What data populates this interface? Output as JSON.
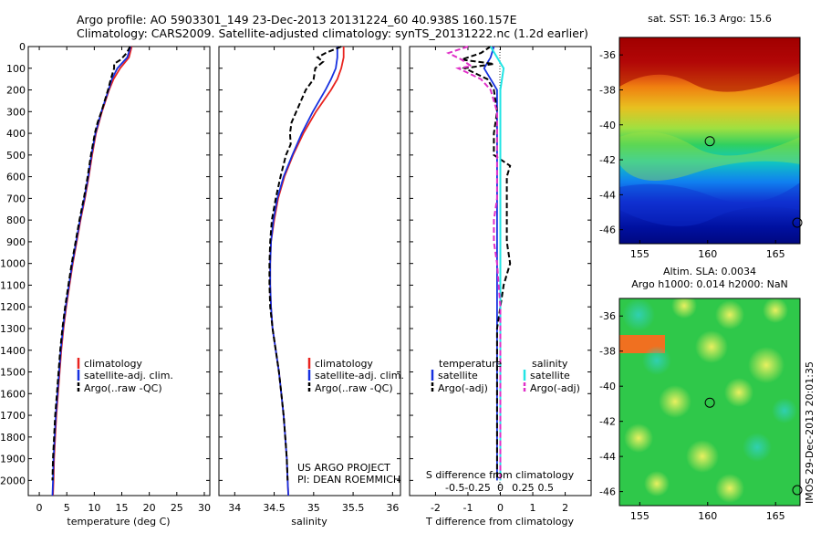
{
  "header": {
    "line1": "Argo profile: AO 5903301_149 23-Dec-2013 20131224_60 40.938S 160.157E",
    "line2": "Climatology: CARS2009. Satellite-adjusted climatology: synTS_20131222.nc (1.2d earlier)"
  },
  "colors": {
    "climatology": "#e8231f",
    "satellite": "#1630e0",
    "argo": "#000000",
    "satellite_salinity": "#22e5e5",
    "argo_salinity": "#e030c8"
  },
  "legend_profile": {
    "climatology": "climatology",
    "satellite": "satellite-adj. clim.",
    "argo": "Argo(..raw -QC)"
  },
  "legend_diff": {
    "temperature_head": "temperature",
    "salinity_head": "salinity",
    "t_satellite": "satellite",
    "t_argo": "Argo(-adj)",
    "s_satellite": "satellite",
    "s_argo": "Argo(-adj)"
  },
  "credit": {
    "line1": "US ARGO PROJECT",
    "line2": "PI: DEAN ROEMMICH"
  },
  "side_label": "IMOS 29-Dec-2013 20:01:35",
  "map_sst": {
    "title": "sat. SST: 16.3 Argo: 15.6",
    "y_ticks": [
      "-36",
      "-38",
      "-40",
      "-42",
      "-44",
      "-46"
    ],
    "x_ticks": [
      "155",
      "160",
      "165"
    ],
    "marker": {
      "lon": 160.157,
      "lat": -40.938
    }
  },
  "map_sla": {
    "title1": "Altim. SLA: 0.0034",
    "title2": "Argo h1000: 0.014 h2000: NaN",
    "y_ticks": [
      "-36",
      "-38",
      "-40",
      "-42",
      "-44",
      "-46"
    ],
    "x_ticks": [
      "155",
      "160",
      "165"
    ],
    "marker": {
      "lon": 160.157,
      "lat": -40.938
    }
  },
  "chart_data": [
    {
      "type": "line",
      "xlabel": "temperature (deg C)",
      "ylabel": "",
      "xlim": [
        -2,
        31
      ],
      "ylim": [
        2070,
        0
      ],
      "x_ticks": [
        0,
        5,
        10,
        15,
        20,
        25,
        30
      ],
      "y_ticks": [
        0,
        100,
        200,
        300,
        400,
        500,
        600,
        700,
        800,
        900,
        1000,
        1100,
        1200,
        1300,
        1400,
        1500,
        1600,
        1700,
        1800,
        1900,
        2000
      ],
      "series": [
        {
          "name": "climatology",
          "depth": [
            0,
            50,
            100,
            150,
            200,
            300,
            400,
            500,
            600,
            700,
            800,
            900,
            1000,
            1100,
            1200,
            1300,
            1400,
            1500,
            1600,
            1700,
            1800,
            1900,
            2000,
            2070
          ],
          "values": [
            16.8,
            16.3,
            14.7,
            13.5,
            12.7,
            11.4,
            10.3,
            9.6,
            9.0,
            8.3,
            7.5,
            6.8,
            6.1,
            5.5,
            4.9,
            4.4,
            4.0,
            3.7,
            3.4,
            3.1,
            2.9,
            2.7,
            2.6,
            2.5
          ]
        },
        {
          "name": "satellite-adj. clim.",
          "depth": [
            0,
            50,
            100,
            150,
            200,
            300,
            400,
            500,
            600,
            700,
            800,
            900,
            1000,
            1100,
            1200,
            1300,
            1400,
            1500,
            1600,
            1700,
            1800,
            1900,
            2000,
            2070
          ],
          "values": [
            16.6,
            16.0,
            14.2,
            13.2,
            12.6,
            11.3,
            10.2,
            9.5,
            8.9,
            8.2,
            7.4,
            6.7,
            6.0,
            5.4,
            4.8,
            4.3,
            3.9,
            3.6,
            3.3,
            3.0,
            2.8,
            2.6,
            2.5,
            2.4
          ]
        },
        {
          "name": "Argo(..raw -QC)",
          "depth": [
            0,
            30,
            60,
            80,
            100,
            150,
            200,
            300,
            350,
            400,
            500,
            600,
            700,
            800,
            900,
            1000,
            1100,
            1200,
            1300,
            1400,
            1500,
            1600,
            1700,
            1800,
            1900,
            2000
          ],
          "values": [
            16.5,
            15.9,
            14.8,
            13.6,
            13.6,
            13.0,
            12.5,
            11.3,
            10.6,
            10.1,
            9.4,
            8.8,
            8.1,
            7.3,
            6.6,
            5.9,
            5.3,
            4.7,
            4.2,
            3.8,
            3.5,
            3.2,
            2.9,
            2.7,
            2.5,
            2.4
          ]
        }
      ]
    },
    {
      "type": "line",
      "xlabel": "salinity",
      "ylabel": "",
      "xlim": [
        33.8,
        36.1
      ],
      "ylim": [
        2070,
        0
      ],
      "x_ticks": [
        34,
        34.5,
        35,
        35.5,
        36
      ],
      "series": [
        {
          "name": "climatology",
          "depth": [
            0,
            50,
            100,
            150,
            200,
            300,
            400,
            500,
            600,
            700,
            800,
            900,
            1000,
            1100,
            1200,
            1300,
            1400,
            1500,
            1600,
            1700,
            1800,
            1900,
            2000,
            2070
          ],
          "values": [
            35.38,
            35.38,
            35.35,
            35.3,
            35.22,
            35.03,
            34.87,
            34.74,
            34.63,
            34.55,
            34.5,
            34.46,
            34.45,
            34.45,
            34.46,
            34.48,
            34.52,
            34.56,
            34.59,
            34.62,
            34.64,
            34.66,
            34.67,
            34.68
          ]
        },
        {
          "name": "satellite-adj. clim.",
          "depth": [
            0,
            50,
            100,
            150,
            200,
            300,
            400,
            500,
            600,
            700,
            800,
            900,
            1000,
            1100,
            1200,
            1300,
            1400,
            1500,
            1600,
            1700,
            1800,
            1900,
            2000,
            2070
          ],
          "values": [
            35.3,
            35.3,
            35.28,
            35.22,
            35.15,
            34.99,
            34.85,
            34.73,
            34.62,
            34.54,
            34.49,
            34.46,
            34.45,
            34.45,
            34.46,
            34.48,
            34.52,
            34.56,
            34.59,
            34.62,
            34.64,
            34.66,
            34.67,
            34.68
          ]
        },
        {
          "name": "Argo(..raw -QC)",
          "depth": [
            0,
            30,
            50,
            70,
            100,
            150,
            200,
            300,
            350,
            400,
            450,
            500,
            600,
            700,
            800,
            900,
            1000,
            1100,
            1200,
            1300,
            1400,
            1500,
            1600,
            1700,
            1800,
            1900,
            2000
          ],
          "values": [
            35.35,
            35.15,
            35.05,
            35.12,
            35.02,
            35.0,
            34.9,
            34.78,
            34.72,
            34.7,
            34.71,
            34.65,
            34.58,
            34.52,
            34.47,
            34.45,
            34.44,
            34.44,
            34.45,
            34.48,
            34.52,
            34.56,
            34.59,
            34.62,
            34.64,
            34.66,
            34.67
          ]
        }
      ]
    },
    {
      "type": "line",
      "xlabel": "T difference from climatology",
      "top_label": "S difference from climatology",
      "ylabel": "",
      "xlim": [
        -2.8,
        2.8
      ],
      "ylim": [
        2070,
        0
      ],
      "x_ticks": [
        -2,
        -1,
        0,
        1,
        2
      ],
      "top_ticks": [
        "-0.5",
        "-0.25",
        "0",
        "0.25",
        "0.5"
      ],
      "top_tick_values": [
        -1.4,
        -0.7,
        0,
        0.7,
        1.4
      ],
      "series": [
        {
          "name": "temperature satellite",
          "depth": [
            0,
            50,
            100,
            200,
            300,
            400,
            500,
            700,
            1000,
            1300,
            1500,
            2000
          ],
          "values": [
            -0.2,
            -0.3,
            -0.5,
            -0.1,
            -0.1,
            -0.1,
            -0.1,
            -0.1,
            -0.1,
            -0.1,
            -0.1,
            -0.1
          ]
        },
        {
          "name": "temperature Argo(-adj)",
          "depth": [
            0,
            30,
            60,
            80,
            100,
            150,
            200,
            300,
            400,
            500,
            550,
            600,
            700,
            800,
            900,
            1000,
            1100,
            1200,
            1300,
            1400,
            1500,
            1600,
            1700,
            1800,
            1900,
            2000
          ],
          "values": [
            -0.3,
            -0.6,
            -1.2,
            -0.2,
            -1.1,
            -0.4,
            -0.2,
            -0.1,
            -0.2,
            -0.2,
            0.3,
            0.2,
            0.2,
            0.2,
            0.2,
            0.3,
            0.1,
            0.0,
            -0.1,
            -0.1,
            -0.1,
            -0.1,
            -0.1,
            -0.1,
            -0.1,
            -0.1
          ]
        },
        {
          "name": "salinity satellite",
          "depth": [
            0,
            50,
            100,
            200,
            300,
            400,
            500,
            700,
            1000,
            1500,
            2000
          ],
          "values": [
            -0.3,
            -0.1,
            0.1,
            0.0,
            0.0,
            0.0,
            0.0,
            0.0,
            0.0,
            0.0,
            0.0
          ]
        },
        {
          "name": "salinity Argo(-adj)",
          "depth": [
            0,
            30,
            60,
            90,
            100,
            150,
            200,
            300,
            400,
            500,
            600,
            700,
            800,
            900,
            1000,
            1200,
            1500,
            2000
          ],
          "values": [
            -1.0,
            -1.6,
            -1.2,
            -0.9,
            -1.3,
            -0.6,
            -0.3,
            -0.1,
            -0.1,
            -0.1,
            -0.1,
            -0.1,
            -0.2,
            -0.2,
            -0.1,
            0.0,
            0.0,
            0.0
          ]
        }
      ]
    }
  ]
}
